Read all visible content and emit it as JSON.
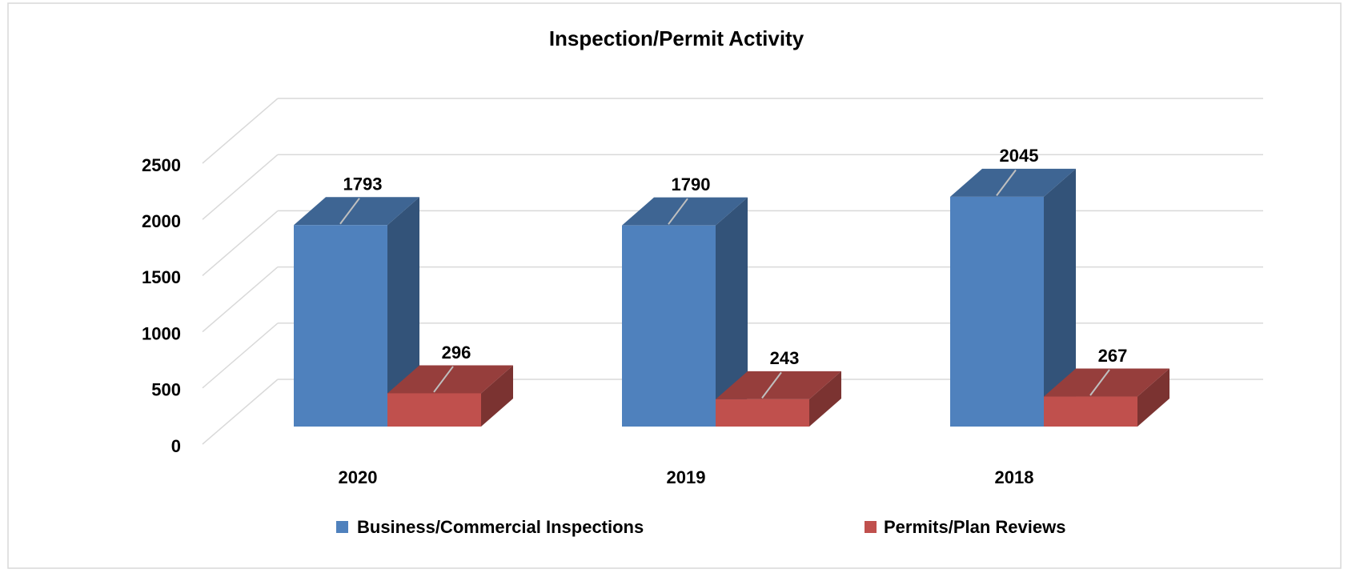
{
  "chart_data": {
    "type": "bar3d",
    "title": "Inspection/Permit Activity",
    "categories": [
      "2020",
      "2019",
      "2018"
    ],
    "series": [
      {
        "name": "Business/Commercial Inspections",
        "color": "#4f81bd",
        "values": [
          1793,
          1790,
          2045
        ]
      },
      {
        "name": "Permits/Plan Reviews",
        "color": "#c0504d",
        "values": [
          296,
          243,
          267
        ]
      }
    ],
    "ylim": [
      0,
      2500
    ],
    "yticks": [
      0,
      500,
      1000,
      1500,
      2000,
      2500
    ],
    "grid": true,
    "legend": "bottom"
  }
}
